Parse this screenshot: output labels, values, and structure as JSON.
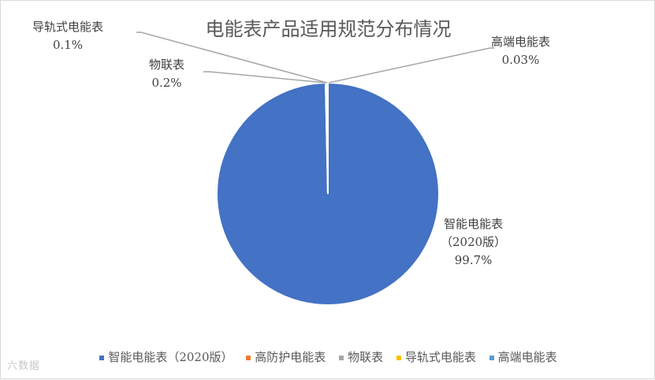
{
  "chart_data": {
    "type": "pie",
    "title": "电能表产品适用规范分布情况",
    "categories": [
      "智能电能表（2020版）",
      "高防护电能表",
      "物联表",
      "导轨式电能表",
      "高端电能表"
    ],
    "values": [
      99.7,
      0,
      0.2,
      0.1,
      0.03
    ],
    "value_labels": [
      "99.7%",
      "",
      "0.2%",
      "0.1%",
      "0.03%"
    ],
    "colors": [
      "#4472c4",
      "#ed7d31",
      "#a5a5a5",
      "#ffc000",
      "#5b9bd5"
    ],
    "data_labels": [
      {
        "name_lines": [
          "智能电能表",
          "（2020版）"
        ],
        "value": "99.7%"
      },
      {
        "name_lines": [
          "物联表"
        ],
        "value": "0.2%"
      },
      {
        "name_lines": [
          "导轨式电能表"
        ],
        "value": "0.1%"
      },
      {
        "name_lines": [
          "高端电能表"
        ],
        "value": "0.03%"
      }
    ],
    "legend_position": "bottom"
  },
  "watermark": "六数据"
}
